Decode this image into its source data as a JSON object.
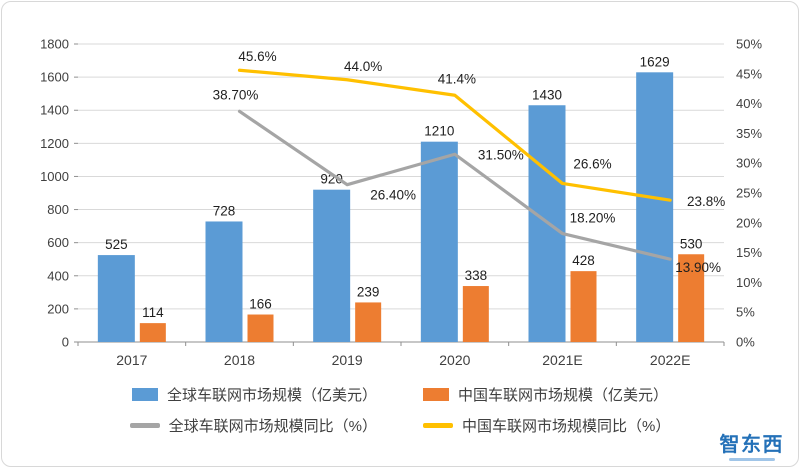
{
  "chart_data": {
    "type": "bar",
    "categories": [
      "2017",
      "2018",
      "2019",
      "2020",
      "2021E",
      "2022E"
    ],
    "series": [
      {
        "name": "全球车联网市场规模（亿美元）",
        "type": "bar",
        "axis": "left",
        "color": "#5B9BD5",
        "values": [
          525,
          728,
          920,
          1210,
          1430,
          1629
        ]
      },
      {
        "name": "中国车联网市场规模（亿美元）",
        "type": "bar",
        "axis": "left",
        "color": "#ED7D31",
        "values": [
          114,
          166,
          239,
          338,
          428,
          530
        ]
      },
      {
        "name": "全球车联网市场规模同比（%）",
        "type": "line",
        "axis": "right",
        "color": "#A5A5A5",
        "values": [
          null,
          38.7,
          26.4,
          31.5,
          18.2,
          13.9
        ],
        "labels": [
          null,
          "38.70%",
          "26.40%",
          "31.50%",
          "18.20%",
          "13.90%"
        ]
      },
      {
        "name": "中国车联网市场规模同比（%）",
        "type": "line",
        "axis": "right",
        "color": "#FFC000",
        "values": [
          null,
          45.6,
          44.0,
          41.4,
          26.6,
          23.8
        ],
        "labels": [
          null,
          "45.6%",
          "44.0%",
          "41.4%",
          "26.6%",
          "23.8%"
        ]
      }
    ],
    "left_axis": {
      "min": 0,
      "max": 1800,
      "step": 200,
      "ticks": [
        "0",
        "200",
        "400",
        "600",
        "800",
        "1000",
        "1200",
        "1400",
        "1600",
        "1800"
      ]
    },
    "right_axis": {
      "min": 0,
      "max": 50,
      "step": 5,
      "ticks": [
        "0%",
        "5%",
        "10%",
        "15%",
        "20%",
        "25%",
        "30%",
        "35%",
        "40%",
        "45%",
        "50%"
      ]
    },
    "grid": true,
    "legend_position": "bottom",
    "title": "",
    "xlabel": "",
    "ylabel": ""
  },
  "watermark": {
    "text": "智东西"
  }
}
